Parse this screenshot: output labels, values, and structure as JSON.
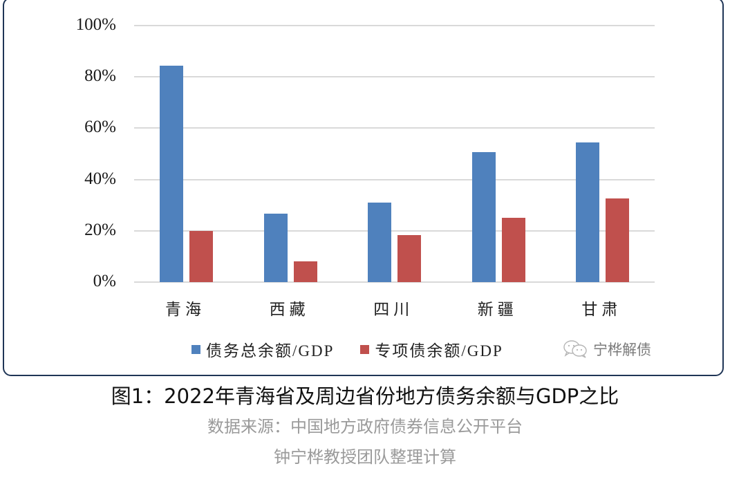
{
  "chart_data": {
    "type": "bar",
    "title": "图1：2022年青海省及周边省份地方债务余额与GDP之比",
    "xlabel": "",
    "ylabel": "",
    "ylim": [
      0,
      100
    ],
    "yticks": [
      "0%",
      "20%",
      "40%",
      "60%",
      "80%",
      "100%"
    ],
    "grid": true,
    "legend_position": "bottom",
    "categories": [
      "青海",
      "西藏",
      "四川",
      "新疆",
      "甘肃"
    ],
    "series": [
      {
        "name": "债务总余额/GDP",
        "color": "#4f81bd",
        "values": [
          84.5,
          26.6,
          31.1,
          50.7,
          54.4
        ]
      },
      {
        "name": "专项债余额/GDP",
        "color": "#c0504d",
        "values": [
          20.0,
          8.1,
          18.3,
          25.2,
          32.7
        ]
      }
    ]
  },
  "watermark": {
    "icon": "wechat-icon",
    "text": "宁桦解债"
  },
  "caption": {
    "title": "图1：2022年青海省及周边省份地方债务余额与GDP之比",
    "source_line1": "数据来源：中国地方政府债券信息公开平台",
    "source_line2": "钟宁桦教授团队整理计算"
  }
}
